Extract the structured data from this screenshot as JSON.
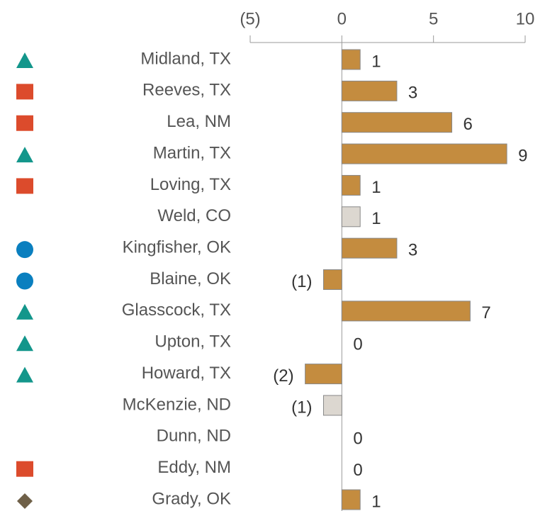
{
  "chart_data": {
    "type": "barh",
    "categories": [
      "Midland, TX",
      "Reeves, TX",
      "Lea, NM",
      "Martin, TX",
      "Loving, TX",
      "Weld, CO",
      "Kingfisher, OK",
      "Blaine, OK",
      "Glasscock, TX",
      "Upton, TX",
      "Howard, TX",
      "McKenzie, ND",
      "Dunn, ND",
      "Eddy, NM",
      "Grady, OK"
    ],
    "values": [
      1,
      3,
      6,
      9,
      1,
      1,
      3,
      -1,
      7,
      0,
      -2,
      -1,
      0,
      0,
      1
    ],
    "value_labels": [
      "1",
      "3",
      "6",
      "9",
      "1",
      "1",
      "3",
      "(1)",
      "7",
      "0",
      "(2)",
      "(1)",
      "0",
      "0",
      "1"
    ],
    "colors": [
      "#c48c3f",
      "#c48c3f",
      "#c48c3f",
      "#c48c3f",
      "#c48c3f",
      "#dcd7d0",
      "#c48c3f",
      "#c48c3f",
      "#c48c3f",
      "#c48c3f",
      "#c48c3f",
      "#dcd7d0",
      "#c48c3f",
      "#c48c3f",
      "#c48c3f"
    ],
    "markers": [
      "triangle",
      "square",
      "square",
      "triangle",
      "square",
      null,
      "circle",
      "circle",
      "triangle",
      "triangle",
      "triangle",
      null,
      null,
      "square",
      "diamond"
    ],
    "marker_colors": {
      "triangle": "#13968b",
      "square": "#dc4b2c",
      "circle": "#0a7fbf",
      "diamond": "#6f6048"
    },
    "xlim": [
      -5,
      10
    ],
    "xticks": [
      {
        "value": -5,
        "label": "(5)"
      },
      0,
      5,
      10
    ]
  }
}
